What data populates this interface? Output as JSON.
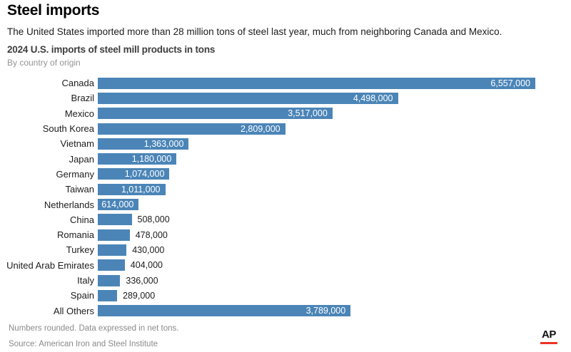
{
  "header": {
    "title": "Steel imports",
    "description": "The United States imported more than 28 million tons of steel last year, much from neighboring Canada and Mexico."
  },
  "chart_data": {
    "type": "bar",
    "orientation": "horizontal",
    "title": "2024 U.S. imports of steel mill products in tons",
    "subtitle": "By country of origin",
    "categories": [
      "Canada",
      "Brazil",
      "Mexico",
      "South Korea",
      "Vietnam",
      "Japan",
      "Germany",
      "Taiwan",
      "Netherlands",
      "China",
      "Romania",
      "Turkey",
      "United Arab Emirates",
      "Italy",
      "Spain",
      "All Others"
    ],
    "values": [
      6557000,
      4498000,
      3517000,
      2809000,
      1363000,
      1180000,
      1074000,
      1011000,
      614000,
      508000,
      478000,
      430000,
      404000,
      336000,
      289000,
      3789000
    ],
    "value_labels": [
      "6,557,000",
      "4,498,000",
      "3,517,000",
      "2,809,000",
      "1,363,000",
      "1,180,000",
      "1,074,000",
      "1,011,000",
      "614,000",
      "508,000",
      "478,000",
      "430,000",
      "404,000",
      "336,000",
      "289,000",
      "3,789,000"
    ],
    "bar_color": "#4b85b7",
    "xlim": [
      0,
      6557000
    ],
    "grid": false,
    "legend": false
  },
  "footer": {
    "note": "Numbers rounded. Data expressed in net tons.",
    "source": "Source: American Iron and Steel Institute",
    "logo": "AP",
    "logo_underline_color": "#ee3124"
  }
}
